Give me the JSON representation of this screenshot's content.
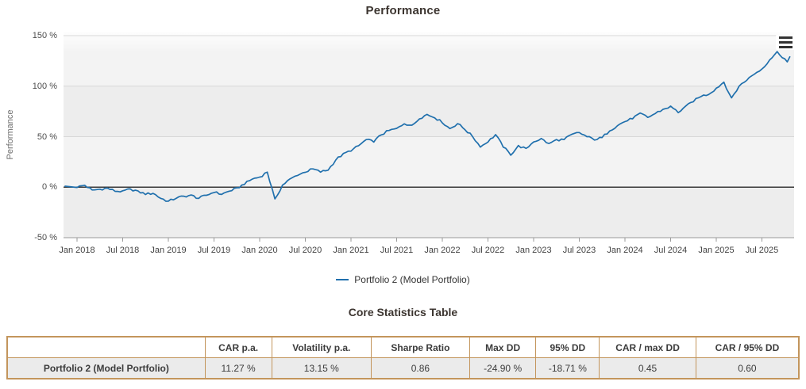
{
  "chart": {
    "title": "Performance",
    "export_icon": "hamburger-icon",
    "colors": {
      "line": "#2070ad",
      "plot_band_light": "#f3f3f3",
      "plot_band_dark": "#ededed",
      "gridline": "#d7d7d7",
      "zero_line": "#3a3a3a",
      "axis_line": "#9a9a9a",
      "table_border": "#c3955c"
    }
  },
  "chart_data": {
    "type": "line",
    "title": "Performance",
    "xlabel": "",
    "ylabel": "Performance",
    "y_unit": "%",
    "ylim": [
      -50,
      150
    ],
    "yticks": {
      "values": [
        150,
        100,
        50,
        0,
        -50
      ],
      "labels": [
        "150 %",
        "100 %",
        "50 %",
        "0 %",
        "-50 %"
      ]
    },
    "x_tick_labels": [
      "Jan 2018",
      "Jul 2018",
      "Jan 2019",
      "Jul 2019",
      "Jan 2020",
      "Jul 2020",
      "Jan 2021",
      "Jul 2021",
      "Jan 2022",
      "Jul 2022",
      "Jan 2023",
      "Jul 2023",
      "Jan 2024",
      "Jul 2024",
      "Jan 2025",
      "Jul 2025"
    ],
    "x_start": "Jan 2018",
    "x_interval": "monthly",
    "grid": "horizontal",
    "legend_position": "bottom",
    "series": [
      {
        "name": "Portfolio 2 (Model Portfolio)",
        "color": "#2070ad",
        "values_pct": [
          0,
          2,
          -3,
          -2,
          -1,
          -4,
          -4,
          -2,
          -4,
          -7,
          -6,
          -11,
          -14,
          -11,
          -9,
          -8,
          -11,
          -8,
          -5,
          -7,
          -4,
          -1,
          3,
          8,
          10,
          15,
          -12,
          2,
          8,
          12,
          15,
          18,
          15,
          17,
          27,
          33,
          36,
          41,
          47,
          45,
          52,
          56,
          58,
          63,
          61,
          68,
          72,
          69,
          64,
          58,
          63,
          57,
          50,
          40,
          45,
          52,
          40,
          32,
          41,
          38,
          45,
          48,
          43,
          47,
          47,
          52,
          54,
          50,
          47,
          49,
          56,
          61,
          65,
          68,
          73,
          69,
          73,
          77,
          80,
          74,
          80,
          85,
          90,
          92,
          98,
          104,
          88,
          100,
          106,
          112,
          117,
          126,
          134,
          127
        ],
        "trailing_points_pct": [
          124,
          129
        ]
      }
    ]
  },
  "stats": {
    "heading": "Core Statistics Table",
    "table": {
      "columns": [
        "",
        "CAR p.a.",
        "Volatility p.a.",
        "Sharpe Ratio",
        "Max DD",
        "95% DD",
        "CAR / max DD",
        "CAR / 95% DD"
      ],
      "column_widths_pct": [
        25,
        8.4,
        12.6,
        12.4,
        8.4,
        8,
        12.2,
        13
      ],
      "rows": [
        {
          "name": "Portfolio 2 (Model Portfolio)",
          "values": [
            "11.27 %",
            "13.15 %",
            "0.86",
            "-24.90 %",
            "-18.71 %",
            "0.45",
            "0.60"
          ]
        }
      ]
    }
  }
}
